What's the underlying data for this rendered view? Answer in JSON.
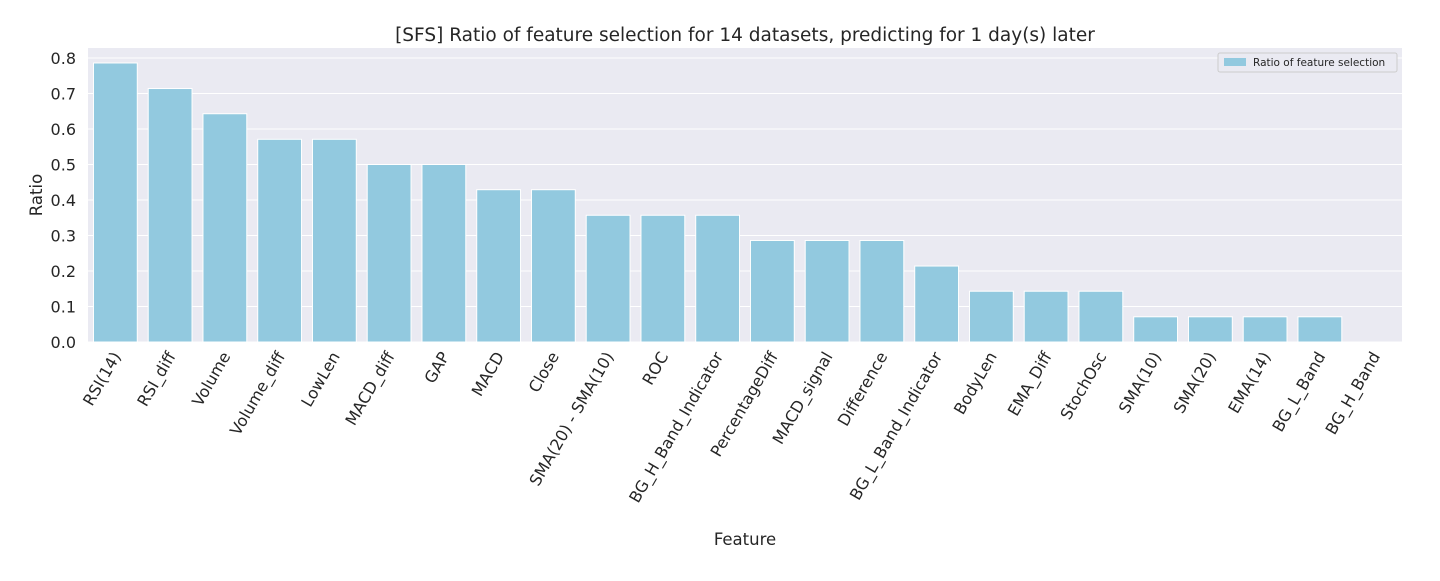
{
  "chart_data": {
    "type": "bar",
    "title": "[SFS] Ratio of feature selection for 14 datasets, predicting for 1 day(s) later",
    "xlabel": "Feature",
    "ylabel": "Ratio",
    "ylim": [
      0,
      0.8
    ],
    "yticks": [
      "0.0",
      "0.1",
      "0.2",
      "0.3",
      "0.4",
      "0.5",
      "0.6",
      "0.7",
      "0.8"
    ],
    "grid": true,
    "legend_position": "top-right",
    "colors": {
      "bar": "#92c9df",
      "plot_bg": "#eaeaf2",
      "grid": "#ffffff"
    },
    "categories": [
      "RSI(14)",
      "RSI_diff",
      "Volume",
      "Volume_diff",
      "LowLen",
      "MACD_diff",
      "GAP",
      "MACD",
      "Close",
      "SMA(20) - SMA(10)",
      "ROC",
      "BG_H_Band_Indicator",
      "PercentageDiff",
      "MACD_signal",
      "Difference",
      "BG_L_Band_Indicator",
      "BodyLen",
      "EMA_Diff",
      "StochOsc",
      "SMA(10)",
      "SMA(20)",
      "EMA(14)",
      "BG_L_Band",
      "BG_H_Band"
    ],
    "series": [
      {
        "name": "Ratio of feature selection",
        "values": [
          0.786,
          0.714,
          0.643,
          0.571,
          0.571,
          0.5,
          0.5,
          0.429,
          0.429,
          0.357,
          0.357,
          0.357,
          0.286,
          0.286,
          0.286,
          0.214,
          0.143,
          0.143,
          0.143,
          0.071,
          0.071,
          0.071,
          0.071,
          0.0
        ]
      }
    ]
  }
}
